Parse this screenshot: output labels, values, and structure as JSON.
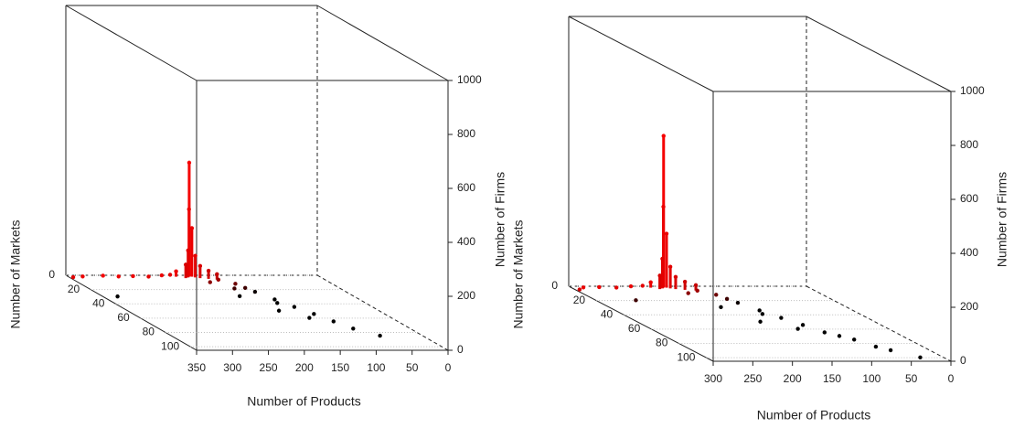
{
  "chart_data": [
    {
      "type": "scatter3d",
      "xlabel": "Number of Products",
      "ylabel": "Number of Markets",
      "zlabel": "Number of Firms",
      "xlim": [
        350,
        0
      ],
      "xticks": [
        350,
        300,
        250,
        200,
        150,
        100,
        50,
        0
      ],
      "ylim": [
        0,
        105
      ],
      "yticks": [
        0,
        20,
        40,
        60,
        80,
        100
      ],
      "zlim": [
        0,
        1000
      ],
      "zticks": [
        0,
        200,
        400,
        600,
        800,
        1000
      ],
      "grid": true,
      "color_far": "#ff0000",
      "color_near": "#000000",
      "x": [
        180,
        182,
        178,
        185,
        175,
        190,
        170,
        200,
        160,
        210,
        150,
        220,
        240,
        260,
        280,
        300,
        330,
        345,
        140,
        130,
        120,
        110,
        100,
        90,
        150,
        160,
        170,
        125,
        80,
        60,
        140,
        115,
        330,
        155,
        135
      ],
      "y": [
        1,
        2,
        2,
        3,
        3,
        4,
        4,
        2,
        5,
        3,
        6,
        2,
        3,
        2,
        2,
        1,
        2,
        3,
        15,
        25,
        35,
        45,
        55,
        65,
        20,
        30,
        12,
        40,
        75,
        85,
        50,
        60,
        30,
        10,
        20
      ],
      "z": [
        420,
        250,
        180,
        100,
        80,
        50,
        45,
        20,
        30,
        10,
        20,
        5,
        3,
        2,
        1,
        1,
        1,
        1,
        8,
        5,
        3,
        2,
        2,
        1,
        4,
        2,
        6,
        3,
        1,
        1,
        1,
        1,
        1,
        10,
        6
      ]
    },
    {
      "type": "scatter3d",
      "xlabel": "Number of Products",
      "ylabel": "Number of Markets",
      "zlabel": "Number of Firms",
      "xlim": [
        300,
        0
      ],
      "xticks": [
        300,
        250,
        200,
        150,
        100,
        50,
        0
      ],
      "ylim": [
        0,
        105
      ],
      "yticks": [
        0,
        20,
        40,
        60,
        80,
        100
      ],
      "zlim": [
        0,
        1000
      ],
      "zticks": [
        0,
        200,
        400,
        600,
        800,
        1000
      ],
      "grid": true,
      "color_far": "#ff0000",
      "color_near": "#000000",
      "x": [
        182,
        184,
        180,
        187,
        177,
        192,
        172,
        200,
        162,
        212,
        150,
        225,
        245,
        265,
        285,
        295,
        140,
        130,
        120,
        110,
        100,
        90,
        80,
        70,
        60,
        160,
        170,
        125,
        50,
        30,
        145,
        115,
        250,
        155,
        135
      ],
      "y": [
        1,
        2,
        2,
        3,
        3,
        4,
        4,
        2,
        5,
        3,
        6,
        2,
        3,
        2,
        2,
        5,
        15,
        25,
        35,
        45,
        55,
        65,
        70,
        75,
        85,
        30,
        12,
        40,
        90,
        100,
        50,
        60,
        20,
        10,
        20
      ],
      "z": [
        560,
        300,
        200,
        110,
        80,
        50,
        45,
        20,
        30,
        10,
        20,
        5,
        3,
        2,
        1,
        1,
        8,
        5,
        3,
        2,
        2,
        1,
        1,
        1,
        1,
        2,
        6,
        3,
        1,
        1,
        1,
        1,
        1,
        10,
        6
      ]
    }
  ]
}
